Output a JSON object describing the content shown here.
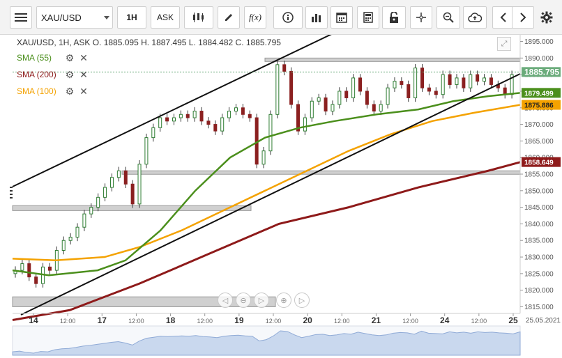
{
  "toolbar": {
    "symbol": "XAU/USD",
    "timeframe": "1H",
    "price_side": "ASK",
    "buttons": [
      "menu-icon",
      "candle-style-icon",
      "draw-pen-icon",
      "fx-icon",
      "info-icon",
      "volume-icon",
      "calendar-icon",
      "calculator-icon",
      "lock-icon",
      "crosshair-icon",
      "zoom-icon",
      "cloud-upload-icon",
      "prev-icon",
      "next-icon",
      "gear-icon"
    ],
    "fx_label": "f(x)"
  },
  "header": {
    "ohlc": "XAU/USD, 1H, ASK    O. 1885.095 H. 1887.495 L. 1884.482 C. 1885.795"
  },
  "indicators": [
    {
      "label": "SMA (55)",
      "color": "#4b8f1c"
    },
    {
      "label": "SMA (200)",
      "color": "#8e1a1a"
    },
    {
      "label": "SMA (100)",
      "color": "#f4a200"
    }
  ],
  "price_axis": {
    "ticks": [
      "1895.000",
      "1890.000",
      "1885.000",
      "1880.000",
      "1875.000",
      "1870.000",
      "1865.000",
      "1860.000",
      "1855.000",
      "1850.000",
      "1845.000",
      "1840.000",
      "1835.000",
      "1830.000",
      "1825.000",
      "1820.000",
      "1815.000"
    ],
    "badges": [
      {
        "value": "1885.795",
        "bg": "#6aab7a",
        "fg": "#ffffff"
      },
      {
        "value": "1879.499",
        "bg": "#4b8f1c",
        "fg": "#ffffff"
      },
      {
        "value": "1875.886",
        "bg": "#f4a200",
        "fg": "#222222"
      },
      {
        "value": "1858.649",
        "bg": "#8e1a1a",
        "fg": "#ffffff"
      }
    ]
  },
  "time_axis": {
    "labels": [
      {
        "text": "14",
        "bold": true
      },
      {
        "text": "12:00",
        "bold": false
      },
      {
        "text": "17",
        "bold": true
      },
      {
        "text": "12:00",
        "bold": false
      },
      {
        "text": "18",
        "bold": true
      },
      {
        "text": "12:00",
        "bold": false
      },
      {
        "text": "19",
        "bold": true
      },
      {
        "text": "12:00",
        "bold": false
      },
      {
        "text": "20",
        "bold": true
      },
      {
        "text": "12:00",
        "bold": false
      },
      {
        "text": "21",
        "bold": true
      },
      {
        "text": "12:00",
        "bold": false
      },
      {
        "text": "24",
        "bold": true
      },
      {
        "text": "12:00",
        "bold": false
      },
      {
        "text": "25",
        "bold": true
      }
    ],
    "date_label": "25.05.2021"
  },
  "nav_buttons": [
    "scroll-left-icon",
    "zoom-out-icon",
    "scroll-right-icon",
    "zoom-in-icon",
    "reset-icon"
  ],
  "chart_data": {
    "type": "line",
    "instrument": "XAU/USD",
    "interval": "1H",
    "ylim": [
      1813,
      1897
    ],
    "sma55_last": 1879.499,
    "sma100_last": 1875.886,
    "sma200_last": 1858.649,
    "last_close": 1885.795,
    "candles_close": [
      1826,
      1828,
      1824,
      1822,
      1827,
      1826,
      1832,
      1835,
      1836,
      1839,
      1843,
      1845,
      1848,
      1851,
      1854,
      1856,
      1852,
      1846,
      1858,
      1866,
      1869,
      1872,
      1871,
      1872,
      1873,
      1872,
      1874,
      1871,
      1870,
      1868,
      1872,
      1874,
      1875,
      1873,
      1872,
      1858,
      1862,
      1873,
      1888,
      1886,
      1876,
      1868,
      1872,
      1877,
      1878,
      1874,
      1876,
      1880,
      1878,
      1884,
      1880,
      1876,
      1874,
      1876,
      1881,
      1883,
      1882,
      1878,
      1887,
      1881,
      1880,
      1879,
      1885,
      1882,
      1884,
      1881,
      1885,
      1883,
      1884,
      1882,
      1881,
      1879,
      1885
    ],
    "channel_upper": [
      [
        1850,
        1897
      ]
    ],
    "zones": [
      {
        "from": 1889,
        "to": 1890
      },
      {
        "from": 1855,
        "to": 1856
      },
      {
        "from": 1844,
        "to": 1845.5
      },
      {
        "from": 1815,
        "to": 1818
      }
    ]
  }
}
